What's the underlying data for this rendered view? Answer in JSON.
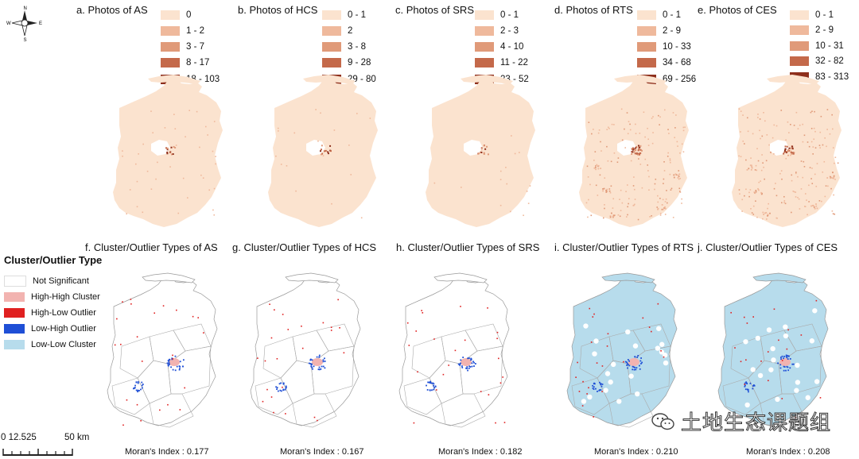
{
  "top_panels": [
    {
      "title": "a. Photos of AS",
      "legend": [
        "0",
        "1 - 2",
        "3 - 7",
        "8 - 17",
        "18 - 103"
      ]
    },
    {
      "title": "b. Photos of HCS",
      "legend": [
        "0 - 1",
        "2",
        "3 - 8",
        "9 - 28",
        "29 - 80"
      ]
    },
    {
      "title": "c. Photos of SRS",
      "legend": [
        "0 - 1",
        "2 - 3",
        "4 - 10",
        "11 - 22",
        "23 - 52"
      ]
    },
    {
      "title": "d. Photos of RTS",
      "legend": [
        "0 - 1",
        "2 - 9",
        "10 - 33",
        "34 - 68",
        "69 - 256"
      ]
    },
    {
      "title": "e. Photos of CES",
      "legend": [
        "0 - 1",
        "2 - 9",
        "10 - 31",
        "32 - 82",
        "83 - 313"
      ]
    }
  ],
  "photo_class_colors": [
    "#fbe3cf",
    "#efb99c",
    "#e09a79",
    "#c4694a",
    "#8e2f1c"
  ],
  "bottom_panels": [
    {
      "title": "f. Cluster/Outlier Types of AS",
      "moran_label": "Moran's Index : 0.177"
    },
    {
      "title": "g. Cluster/Outlier Types of HCS",
      "moran_label": "Moran's Index : 0.167"
    },
    {
      "title": "h. Cluster/Outlier Types of SRS",
      "moran_label": "Moran's Index : 0.182"
    },
    {
      "title": "i. Cluster/Outlier Types of RTS",
      "moran_label": "Moran's Index : 0.210"
    },
    {
      "title": "j. Cluster/Outlier Types of CES",
      "moran_label": "Moran's Index : 0.208"
    }
  ],
  "cluster_legend": {
    "title": "Cluster/Outlier Type",
    "items": [
      {
        "label": "Not Significant",
        "color": "#ffffff"
      },
      {
        "label": "High-High Cluster",
        "color": "#f2b3b0"
      },
      {
        "label": "High-Low Outlier",
        "color": "#e02020"
      },
      {
        "label": "Low-High Outlier",
        "color": "#1f4fd6"
      },
      {
        "label": "Low-Low Cluster",
        "color": "#b7dcec"
      }
    ]
  },
  "scale_bar": {
    "ticks_label": "0 12.525",
    "end_label": "50 km"
  },
  "north_arrow": {
    "n": "N",
    "s": "S",
    "e": "E",
    "w": "W"
  },
  "watermark": "土地生态课题组"
}
